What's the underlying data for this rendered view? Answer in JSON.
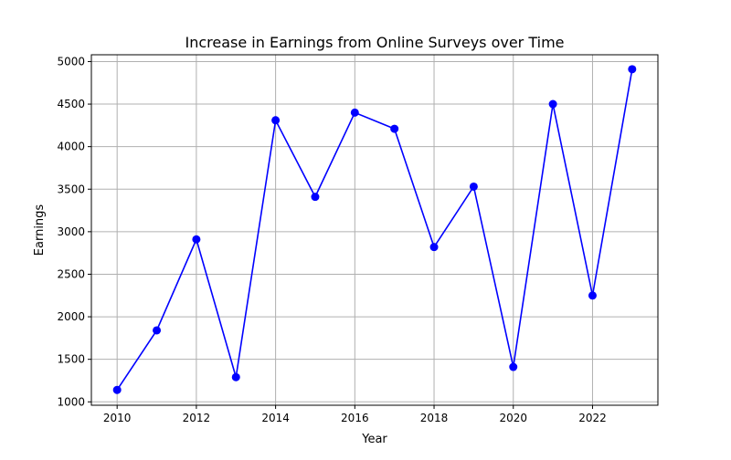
{
  "chart_data": {
    "type": "line",
    "title": "Increase in Earnings from Online Surveys over Time",
    "xlabel": "Year",
    "ylabel": "Earnings",
    "x": [
      2010,
      2011,
      2012,
      2013,
      2014,
      2015,
      2016,
      2017,
      2018,
      2019,
      2020,
      2021,
      2022,
      2023
    ],
    "series": [
      {
        "name": "Earnings",
        "color": "#0000ff",
        "marker": "circle",
        "values": [
          1140,
          1840,
          2910,
          1290,
          4310,
          3410,
          4400,
          4210,
          2820,
          3530,
          1410,
          4500,
          2250,
          4910
        ]
      }
    ],
    "xticks": [
      "2010",
      "2012",
      "2014",
      "2016",
      "2018",
      "2020",
      "2022"
    ],
    "yticks": [
      "1000",
      "1500",
      "2000",
      "2500",
      "3000",
      "3500",
      "4000",
      "4500",
      "5000"
    ],
    "xlim": [
      2009.35,
      2023.65
    ],
    "ylim": [
      960,
      5080
    ],
    "grid": true,
    "legend": null
  }
}
